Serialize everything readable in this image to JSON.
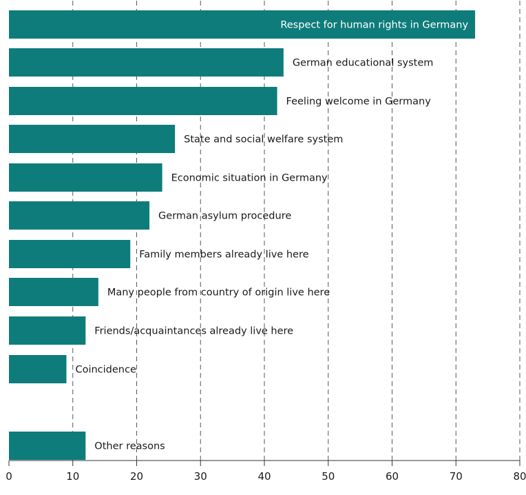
{
  "chart_data": {
    "type": "bar",
    "orientation": "horizontal",
    "title": "",
    "xlabel": "",
    "ylabel": "",
    "xlim": [
      0,
      80
    ],
    "xticks": [
      0,
      10,
      20,
      30,
      40,
      50,
      60,
      70,
      80
    ],
    "grid": true,
    "bar_color": "#0e7c7b",
    "categories": [
      "Respect for human rights in Germany",
      "German educational system",
      "Feeling welcome in Germany",
      "State and social welfare system",
      "Economic situation in Germany",
      "German asylum procedure",
      "Family members already live here",
      "Many people from country of origin live here",
      "Friends/acquaintances already live here",
      "Coincidence",
      "Other reasons"
    ],
    "values": [
      73,
      43,
      42,
      26,
      24,
      22,
      19,
      14,
      12,
      9,
      12
    ]
  }
}
